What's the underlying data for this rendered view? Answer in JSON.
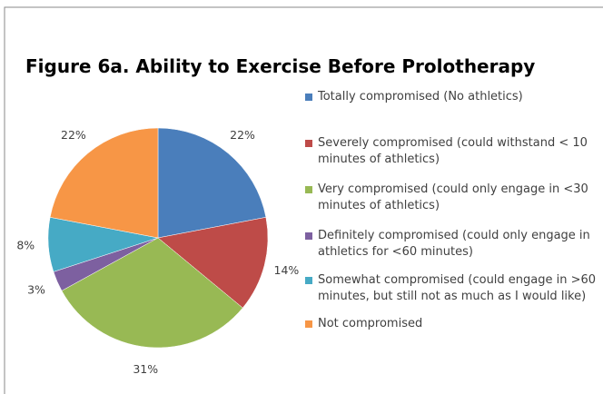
{
  "chart_data": {
    "type": "pie",
    "title": "Figure 6a. Ability to Exercise Before Prolotherapy",
    "categories": [
      "Totally compromised (No athletics)",
      "Severely compromised (could withstand < 10 minutes of athletics)",
      "Very compromised (could only engage in <30 minutes of athletics)",
      "Definitely compromised (could only engage in athletics for <60 minutes)",
      "Somewhat compromised (could engage in >60 minutes, but still not as much as I would like)",
      "Not compromised"
    ],
    "values": [
      22,
      14,
      31,
      3,
      8,
      22
    ],
    "value_labels": [
      "22%",
      "14%",
      "31%",
      "3%",
      "8%",
      "22%"
    ],
    "colors": [
      "#4a7ebb",
      "#be4b48",
      "#98b954",
      "#7d60a0",
      "#46aac5",
      "#f79646"
    ],
    "legend": "right"
  }
}
